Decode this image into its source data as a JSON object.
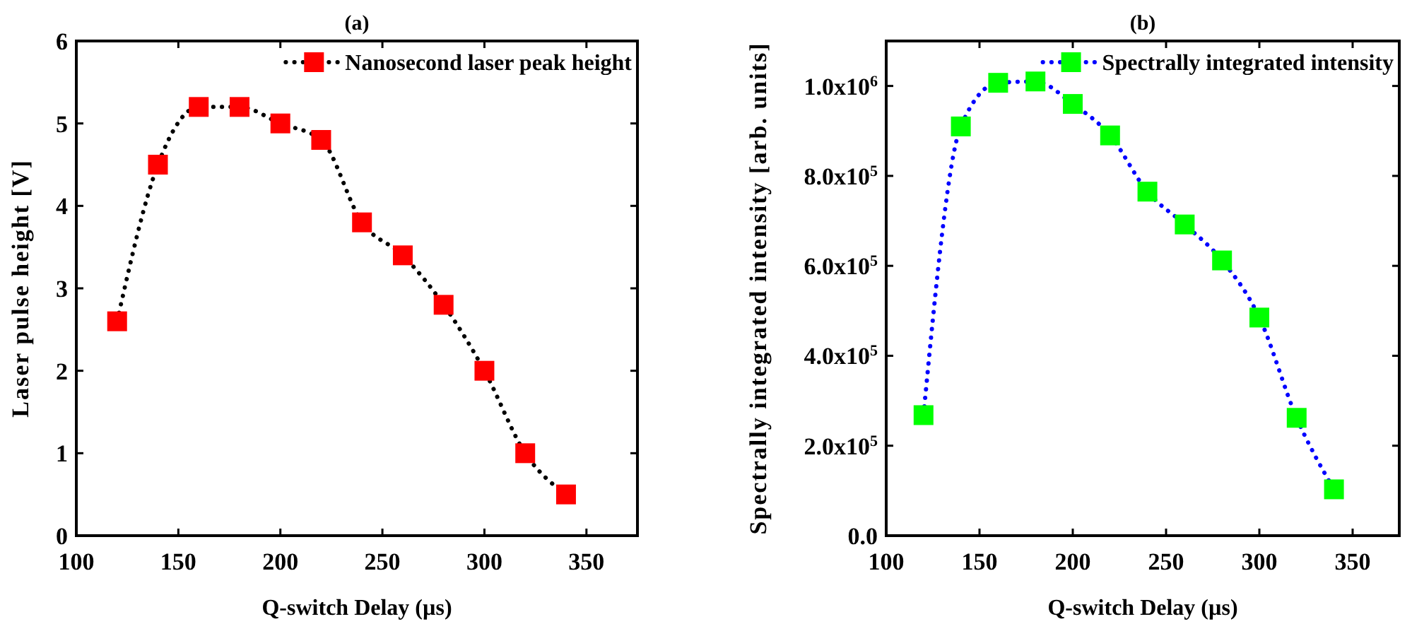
{
  "chart_data": [
    {
      "type": "line",
      "title": "(a)",
      "xlabel": "Q-switch Delay (µs)",
      "ylabel": "Laser pulse height [V]",
      "xlim": [
        100,
        375
      ],
      "xticks": [
        100,
        150,
        200,
        250,
        300,
        350
      ],
      "ylim": [
        0,
        6
      ],
      "yticks": [
        0,
        1,
        2,
        3,
        4,
        5,
        6
      ],
      "legend": "top right",
      "grid": false,
      "series": [
        {
          "color": "#000000",
          "line_style": "dotted",
          "marker": "none",
          "x": [
            120,
            140,
            160,
            180,
            200,
            220,
            240,
            260,
            280,
            300,
            320,
            340
          ],
          "values": [
            2.6,
            4.5,
            5.2,
            5.2,
            5.0,
            4.8,
            3.8,
            3.4,
            2.8,
            2.0,
            1.0,
            0.5
          ]
        },
        {
          "type": "scatter",
          "name": "Nanosecond laser peak height",
          "color": "#ff0000",
          "marker": "square",
          "x": [
            120,
            140,
            160,
            180,
            200,
            220,
            240,
            260,
            280,
            300,
            320,
            340
          ],
          "values": [
            2.6,
            4.5,
            5.2,
            5.2,
            5.0,
            4.8,
            3.8,
            3.4,
            2.8,
            2.0,
            1.0,
            0.5
          ]
        }
      ]
    },
    {
      "type": "line",
      "title": "(b)",
      "xlabel": "Q-switch Delay (µs)",
      "ylabel": "Spectrally integrated intensity [arb. units]",
      "xlim": [
        100,
        375
      ],
      "xticks": [
        100,
        150,
        200,
        250,
        300,
        350
      ],
      "ylim": [
        0,
        1100000
      ],
      "yticks": [
        {
          "value": 0,
          "label": "0.0"
        },
        {
          "value": 200000,
          "label": "2.0x10$^{5}$"
        },
        {
          "value": 400000,
          "label": "4.0x10$^{5}$"
        },
        {
          "value": 600000,
          "label": "6.0x10$^{5}$"
        },
        {
          "value": 800000,
          "label": "8.0x10$^{5}$"
        },
        {
          "value": 1000000,
          "label": "1.0x10$^{6}$"
        }
      ],
      "legend": "top right",
      "grid": false,
      "series": [
        {
          "color": "#0000ff",
          "line_style": "dotted",
          "marker": "none",
          "x": [
            120,
            140,
            160,
            180,
            200,
            220,
            240,
            260,
            280,
            300,
            320,
            340
          ],
          "values": [
            268000,
            910000,
            1007000,
            1010000,
            960000,
            890000,
            765000,
            692000,
            612000,
            485000,
            262000,
            103000
          ]
        },
        {
          "type": "scatter",
          "name": "Spectrally integrated intensity",
          "color": "#00ff00",
          "marker": "square",
          "x": [
            120,
            140,
            160,
            180,
            200,
            220,
            240,
            260,
            280,
            300,
            320,
            340
          ],
          "values": [
            268000,
            910000,
            1007000,
            1010000,
            960000,
            890000,
            765000,
            692000,
            612000,
            485000,
            262000,
            103000
          ]
        }
      ]
    }
  ]
}
